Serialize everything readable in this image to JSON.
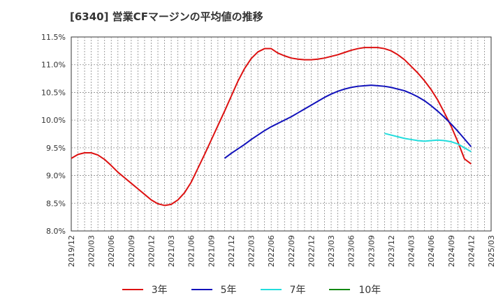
{
  "chart_data": {
    "type": "line",
    "title": "[6340]  営業CFマージンの平均値の推移",
    "xlabel": "",
    "ylabel": "",
    "x_ticks": [
      "2019/12",
      "2020/03",
      "2020/06",
      "2020/09",
      "2020/12",
      "2021/03",
      "2021/06",
      "2021/09",
      "2021/12",
      "2022/03",
      "2022/06",
      "2022/09",
      "2022/12",
      "2023/03",
      "2023/06",
      "2023/09",
      "2023/12",
      "2024/03",
      "2024/06",
      "2024/09",
      "2024/12",
      "2025/03"
    ],
    "y_ticks": [
      "8.0%",
      "8.5%",
      "9.0%",
      "9.5%",
      "10.0%",
      "10.5%",
      "11.0%",
      "11.5%"
    ],
    "ylim": [
      8.0,
      11.5
    ],
    "grid": true,
    "legend_position": "bottom",
    "series": [
      {
        "name": "3年",
        "color": "#dd1111",
        "x": [
          "2019/12",
          "2020/01",
          "2020/02",
          "2020/03",
          "2020/04",
          "2020/05",
          "2020/06",
          "2020/07",
          "2020/08",
          "2020/09",
          "2020/10",
          "2020/11",
          "2020/12",
          "2021/01",
          "2021/02",
          "2021/03",
          "2021/04",
          "2021/05",
          "2021/06",
          "2021/07",
          "2021/08",
          "2021/09",
          "2021/10",
          "2021/11",
          "2021/12",
          "2022/01",
          "2022/02",
          "2022/03",
          "2022/04",
          "2022/05",
          "2022/06",
          "2022/07",
          "2022/08",
          "2022/09",
          "2022/10",
          "2022/11",
          "2022/12",
          "2023/01",
          "2023/02",
          "2023/03",
          "2023/04",
          "2023/05",
          "2023/06",
          "2023/07",
          "2023/08",
          "2023/09",
          "2023/10",
          "2023/11",
          "2023/12",
          "2024/01",
          "2024/02",
          "2024/03",
          "2024/04",
          "2024/05",
          "2024/06",
          "2024/07",
          "2024/08",
          "2024/09",
          "2024/10",
          "2024/11",
          "2024/12"
        ],
        "values": [
          9.31,
          9.38,
          9.41,
          9.41,
          9.37,
          9.29,
          9.18,
          9.06,
          8.96,
          8.86,
          8.76,
          8.66,
          8.56,
          8.49,
          8.46,
          8.48,
          8.56,
          8.69,
          8.88,
          9.13,
          9.38,
          9.64,
          9.9,
          10.16,
          10.43,
          10.7,
          10.93,
          11.11,
          11.23,
          11.29,
          11.29,
          11.21,
          11.16,
          11.12,
          11.1,
          11.09,
          11.09,
          11.1,
          11.12,
          11.15,
          11.18,
          11.22,
          11.26,
          11.29,
          11.31,
          11.31,
          11.31,
          11.29,
          11.25,
          11.18,
          11.09,
          10.97,
          10.85,
          10.71,
          10.55,
          10.36,
          10.13,
          9.89,
          9.61,
          9.3,
          9.21
        ]
      },
      {
        "name": "5年",
        "color": "#1111bb",
        "x": [
          "2021/11",
          "2021/12",
          "2022/01",
          "2022/02",
          "2022/03",
          "2022/04",
          "2022/05",
          "2022/06",
          "2022/07",
          "2022/08",
          "2022/09",
          "2022/10",
          "2022/11",
          "2022/12",
          "2023/01",
          "2023/02",
          "2023/03",
          "2023/04",
          "2023/05",
          "2023/06",
          "2023/07",
          "2023/08",
          "2023/09",
          "2023/10",
          "2023/11",
          "2023/12",
          "2024/01",
          "2024/02",
          "2024/03",
          "2024/04",
          "2024/05",
          "2024/06",
          "2024/07",
          "2024/08",
          "2024/09",
          "2024/10",
          "2024/11",
          "2024/12"
        ],
        "values": [
          9.31,
          9.4,
          9.48,
          9.56,
          9.65,
          9.73,
          9.81,
          9.88,
          9.94,
          10.0,
          10.06,
          10.13,
          10.2,
          10.27,
          10.34,
          10.41,
          10.47,
          10.52,
          10.56,
          10.59,
          10.61,
          10.62,
          10.63,
          10.62,
          10.61,
          10.59,
          10.56,
          10.53,
          10.48,
          10.42,
          10.35,
          10.26,
          10.16,
          10.05,
          9.93,
          9.8,
          9.66,
          9.52
        ]
      },
      {
        "name": "7年",
        "color": "#22dddd",
        "x": [
          "2023/11",
          "2023/12",
          "2024/01",
          "2024/02",
          "2024/03",
          "2024/04",
          "2024/05",
          "2024/06",
          "2024/07",
          "2024/08",
          "2024/09",
          "2024/10",
          "2024/11",
          "2024/12"
        ],
        "values": [
          9.76,
          9.73,
          9.7,
          9.67,
          9.65,
          9.63,
          9.62,
          9.63,
          9.64,
          9.63,
          9.61,
          9.57,
          9.5,
          9.43
        ]
      },
      {
        "name": "10年",
        "color": "#118811",
        "x": [],
        "values": []
      }
    ]
  }
}
